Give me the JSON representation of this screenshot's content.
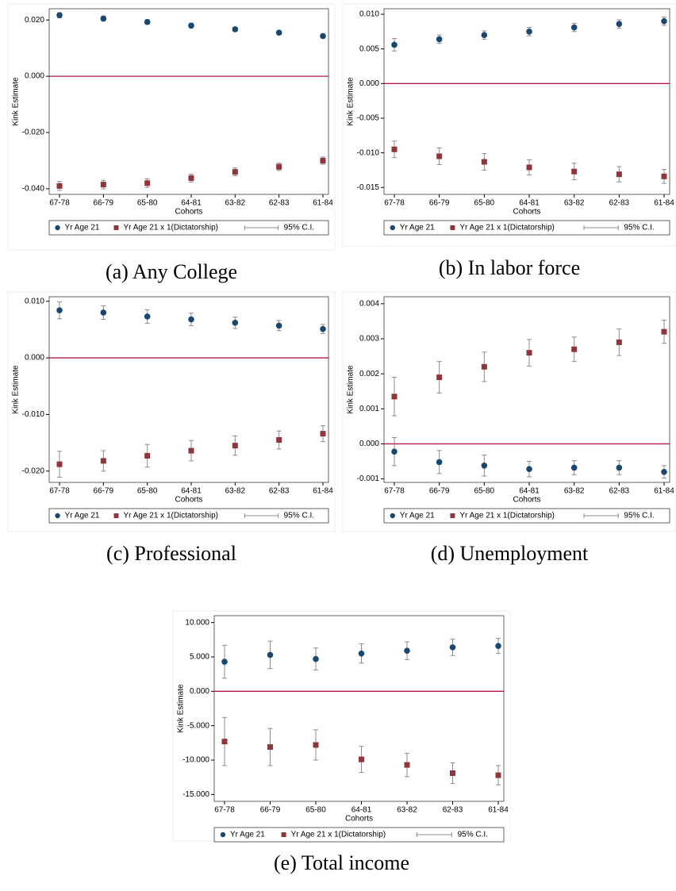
{
  "chart_data": [
    {
      "type": "errorbar",
      "caption": "(a) Any College",
      "ylabel": "Kink Estimate",
      "xlabel": "Cohorts",
      "ci_legend": "95% C.I.",
      "categories": [
        "67-78",
        "66-79",
        "65-80",
        "64-81",
        "63-82",
        "62-83",
        "61-84"
      ],
      "series": [
        {
          "name": "Yr Age 21",
          "color": "#1a476f",
          "marker": "circle",
          "values": [
            0.0217,
            0.0205,
            0.0193,
            0.018,
            0.0167,
            0.0155,
            0.0143
          ],
          "errors": [
            0.0009,
            0.0009,
            0.0008,
            0.0008,
            0.0007,
            0.0007,
            0.0007
          ]
        },
        {
          "name": "Yr Age 21 x 1(Dictatorship)",
          "color": "#90353b",
          "marker": "square",
          "values": [
            -0.039,
            -0.0385,
            -0.038,
            -0.0362,
            -0.034,
            -0.0322,
            -0.03
          ],
          "errors": [
            0.0016,
            0.0015,
            0.0015,
            0.0014,
            0.0014,
            0.0013,
            0.0013
          ]
        }
      ],
      "reference_line": 0,
      "reference_color": "#b5174e",
      "ci_color": "#8c8c8c",
      "ylim": [
        -0.042,
        0.024
      ],
      "yticks": [
        {
          "value": -0.04,
          "label": "-0.040"
        },
        {
          "value": -0.02,
          "label": "-0.020"
        },
        {
          "value": 0,
          "label": "0.000"
        },
        {
          "value": 0.02,
          "label": "0.020"
        }
      ]
    },
    {
      "type": "errorbar",
      "caption": "(b) In labor force",
      "ylabel": "Kink Estimate",
      "xlabel": "Cohorts",
      "ci_legend": "95% C.I.",
      "categories": [
        "67-78",
        "66-79",
        "65-80",
        "64-81",
        "63-82",
        "62-83",
        "61-84"
      ],
      "series": [
        {
          "name": "Yr Age 21",
          "color": "#1a476f",
          "marker": "circle",
          "values": [
            0.0056,
            0.0064,
            0.007,
            0.0075,
            0.0081,
            0.0086,
            0.009
          ],
          "errors": [
            0.0009,
            0.0006,
            0.0006,
            0.0006,
            0.0006,
            0.0006,
            0.0006
          ]
        },
        {
          "name": "Yr Age 21 x 1(Dictatorship)",
          "color": "#90353b",
          "marker": "square",
          "values": [
            -0.0095,
            -0.0105,
            -0.0113,
            -0.0121,
            -0.0127,
            -0.0131,
            -0.0134
          ],
          "errors": [
            0.0012,
            0.0012,
            0.0012,
            0.0011,
            0.0012,
            0.0011,
            0.001
          ]
        }
      ],
      "reference_line": 0,
      "reference_color": "#b5174e",
      "ci_color": "#8c8c8c",
      "ylim": [
        -0.016,
        0.0108
      ],
      "yticks": [
        {
          "value": -0.015,
          "label": "-0.015"
        },
        {
          "value": -0.01,
          "label": "-0.010"
        },
        {
          "value": -0.005,
          "label": "-0.005"
        },
        {
          "value": 0,
          "label": "0.000"
        },
        {
          "value": 0.005,
          "label": "0.005"
        },
        {
          "value": 0.01,
          "label": "0.010"
        }
      ]
    },
    {
      "type": "errorbar",
      "caption": "(c) Professional",
      "ylabel": "Kink Estimate",
      "xlabel": "Cohorts",
      "ci_legend": "95% C.I.",
      "categories": [
        "67-78",
        "66-79",
        "65-80",
        "64-81",
        "63-82",
        "62-83",
        "61-84"
      ],
      "series": [
        {
          "name": "Yr Age 21",
          "color": "#1a476f",
          "marker": "circle",
          "values": [
            0.0084,
            0.008,
            0.0073,
            0.0068,
            0.0062,
            0.0057,
            0.0051
          ],
          "errors": [
            0.0015,
            0.0012,
            0.0012,
            0.0011,
            0.001,
            0.0009,
            0.0008
          ]
        },
        {
          "name": "Yr Age 21 x 1(Dictatorship)",
          "color": "#90353b",
          "marker": "square",
          "values": [
            -0.0188,
            -0.0182,
            -0.0173,
            -0.0164,
            -0.0155,
            -0.0145,
            -0.0134
          ],
          "errors": [
            0.0023,
            0.0018,
            0.002,
            0.0018,
            0.0017,
            0.0016,
            0.0014
          ]
        }
      ],
      "reference_line": 0,
      "reference_color": "#b5174e",
      "ci_color": "#8c8c8c",
      "ylim": [
        -0.022,
        0.0108
      ],
      "yticks": [
        {
          "value": -0.02,
          "label": "-0.020"
        },
        {
          "value": -0.01,
          "label": "-0.010"
        },
        {
          "value": 0,
          "label": "0.000"
        },
        {
          "value": 0.01,
          "label": "0.010"
        }
      ]
    },
    {
      "type": "errorbar",
      "caption": "(d) Unemployment",
      "ylabel": "Kink Estimate",
      "xlabel": "Cohorts",
      "ci_legend": "95% C.I.",
      "categories": [
        "67-78",
        "66-79",
        "65-80",
        "64-81",
        "63-82",
        "62-83",
        "61-84"
      ],
      "series": [
        {
          "name": "Yr Age 21",
          "color": "#1a476f",
          "marker": "circle",
          "values": [
            -0.00022,
            -0.00052,
            -0.00062,
            -0.00072,
            -0.00068,
            -0.00068,
            -0.0008
          ],
          "errors": [
            0.0004,
            0.00033,
            0.0003,
            0.00022,
            0.0002,
            0.0002,
            0.00018
          ]
        },
        {
          "name": "Yr Age 21 x 1(Dictatorship)",
          "color": "#90353b",
          "marker": "square",
          "values": [
            0.00135,
            0.0019,
            0.0022,
            0.0026,
            0.0027,
            0.0029,
            0.0032
          ],
          "errors": [
            0.00055,
            0.00045,
            0.00042,
            0.00038,
            0.00035,
            0.00038,
            0.00033
          ]
        }
      ],
      "reference_line": 0,
      "reference_color": "#b5174e",
      "ci_color": "#8c8c8c",
      "ylim": [
        -0.0011,
        0.0042
      ],
      "yticks": [
        {
          "value": -0.001,
          "label": "-0.001"
        },
        {
          "value": 0,
          "label": "0.000"
        },
        {
          "value": 0.001,
          "label": "0.001"
        },
        {
          "value": 0.002,
          "label": "0.002"
        },
        {
          "value": 0.003,
          "label": "0.003"
        },
        {
          "value": 0.004,
          "label": "0.004"
        }
      ]
    },
    {
      "type": "errorbar",
      "caption": "(e) Total income",
      "ylabel": "Kink Estimate",
      "xlabel": "Cohorts",
      "ci_legend": "95% C.I.",
      "categories": [
        "67-78",
        "66-79",
        "65-80",
        "64-81",
        "63-82",
        "62-83",
        "61-84"
      ],
      "series": [
        {
          "name": "Yr Age 21",
          "color": "#1a476f",
          "marker": "circle",
          "values": [
            4300,
            5300,
            4700,
            5500,
            5900,
            6400,
            6600
          ],
          "errors": [
            2400,
            2000,
            1600,
            1400,
            1300,
            1200,
            1100
          ]
        },
        {
          "name": "Yr Age 21 x 1(Dictatorship)",
          "color": "#90353b",
          "marker": "square",
          "values": [
            -7300,
            -8100,
            -7800,
            -9900,
            -10700,
            -11900,
            -12200
          ],
          "errors": [
            3500,
            2700,
            2200,
            1900,
            1700,
            1500,
            1400
          ]
        }
      ],
      "reference_line": 0,
      "reference_color": "#b5174e",
      "ci_color": "#8c8c8c",
      "ylim": [
        -16000,
        11000
      ],
      "yticks": [
        {
          "value": -15000,
          "label": "-15.000"
        },
        {
          "value": -10000,
          "label": "-10.000"
        },
        {
          "value": -5000,
          "label": "-5.000"
        },
        {
          "value": 0,
          "label": "0.000"
        },
        {
          "value": 5000,
          "label": "5.000"
        },
        {
          "value": 10000,
          "label": "10.000"
        }
      ]
    }
  ]
}
